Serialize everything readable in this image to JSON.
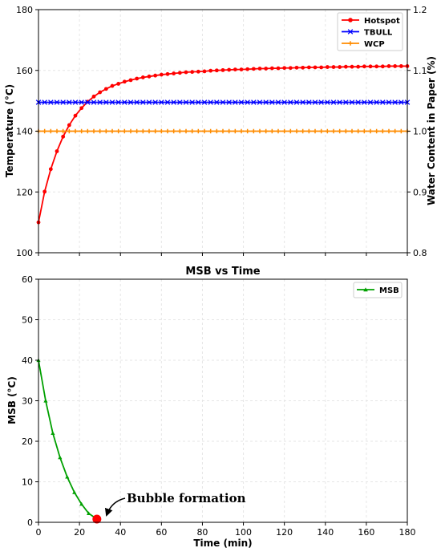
{
  "chart_data": [
    {
      "type": "line",
      "title": "",
      "xlabel": "",
      "ylabel": "Temperature (°C)",
      "ylabel_right": "Water Content in Paper (%)",
      "xlim": [
        0,
        180
      ],
      "ylim": [
        100,
        180
      ],
      "ylim_right": [
        0.8,
        1.2
      ],
      "xticks": [
        "0",
        "20",
        "40",
        "60",
        "80",
        "100",
        "120",
        "140",
        "160",
        "180"
      ],
      "yticks": [
        "100",
        "120",
        "140",
        "160",
        "180"
      ],
      "yticks_right": [
        "0.8",
        "0.9",
        "1.0",
        "1.1",
        "1.2"
      ],
      "grid": true,
      "legend": "top-right",
      "x": [
        0,
        3,
        6,
        9,
        12,
        15,
        18,
        21,
        24,
        27,
        30,
        33,
        36,
        39,
        42,
        45,
        48,
        51,
        54,
        57,
        60,
        63,
        66,
        69,
        72,
        75,
        78,
        81,
        84,
        87,
        90,
        93,
        96,
        99,
        102,
        105,
        108,
        111,
        114,
        117,
        120,
        123,
        126,
        129,
        132,
        135,
        138,
        141,
        144,
        147,
        150,
        153,
        156,
        159,
        162,
        165,
        168,
        171,
        174,
        177,
        180
      ],
      "series": [
        {
          "name": "Hotspot",
          "color": "#ff0000",
          "marker": "circle",
          "values": [
            110.0,
            120.1,
            127.5,
            133.4,
            138.2,
            142.0,
            145.1,
            147.6,
            149.7,
            151.4,
            152.8,
            153.9,
            154.9,
            155.6,
            156.3,
            156.8,
            157.3,
            157.7,
            158.0,
            158.3,
            158.6,
            158.8,
            159.0,
            159.2,
            159.4,
            159.5,
            159.6,
            159.7,
            159.9,
            160.0,
            160.1,
            160.2,
            160.3,
            160.3,
            160.4,
            160.5,
            160.6,
            160.6,
            160.7,
            160.7,
            160.8,
            160.8,
            160.9,
            160.9,
            161.0,
            161.0,
            161.0,
            161.1,
            161.1,
            161.1,
            161.2,
            161.2,
            161.2,
            161.3,
            161.3,
            161.3,
            161.3,
            161.4,
            161.4,
            161.4,
            161.4
          ]
        },
        {
          "name": "TBULL",
          "color": "#0000ff",
          "marker": "x",
          "constant": 149.5
        },
        {
          "name": "WCP",
          "color": "#ff8c00",
          "marker": "plus",
          "constant": 140.0
        }
      ]
    },
    {
      "type": "line",
      "title": "MSB vs Time",
      "xlabel": "Time (min)",
      "ylabel": "MSB (°C)",
      "xlim": [
        0,
        180
      ],
      "ylim": [
        0,
        60
      ],
      "xticks": [
        "0",
        "20",
        "40",
        "60",
        "80",
        "100",
        "120",
        "140",
        "160",
        "180"
      ],
      "yticks": [
        "0",
        "10",
        "20",
        "30",
        "40",
        "50",
        "60"
      ],
      "grid": true,
      "legend": "top-right",
      "series": [
        {
          "name": "MSB",
          "color": "#00a000",
          "marker": "triangle",
          "x": [
            0,
            3.5,
            7,
            10.5,
            14,
            17.5,
            21,
            24.5,
            28.5
          ],
          "values": [
            40.0,
            30.0,
            22.0,
            16.0,
            11.2,
            7.4,
            4.5,
            2.2,
            0.8
          ]
        }
      ],
      "annotation": {
        "text": "Bubble formation",
        "x": 28.5,
        "y": 0.8,
        "marker_color": "#ff0000"
      }
    }
  ]
}
